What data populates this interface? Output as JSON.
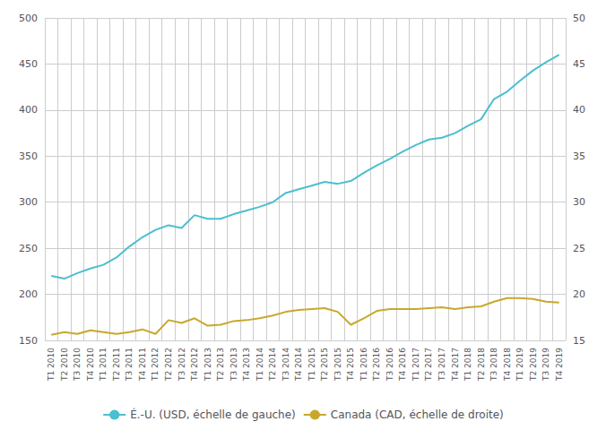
{
  "chart_data": {
    "type": "line",
    "categories": [
      "T1 2010",
      "T2 2010",
      "T3 2010",
      "T4 2010",
      "T1 2011",
      "T2 2011",
      "T3 2011",
      "T4 2011",
      "T1 2012",
      "T2 2012",
      "T3 2012",
      "T4 2012",
      "T1 2013",
      "T2 2013",
      "T3 2013",
      "T4 2013",
      "T1 2014",
      "T2 2014",
      "T3 2014",
      "T4 2014",
      "T1 2015",
      "T2 2015",
      "T3 2015",
      "T4 2015",
      "T1 2016",
      "T2 2016",
      "T3 2016",
      "T4 2016",
      "T1 2017",
      "T2 2017",
      "T3 2017",
      "T4 2017",
      "T1 2018",
      "T2 2018",
      "T3 2018",
      "T4 2018",
      "T1 2019",
      "T2 2019",
      "T3 2019",
      "T4 2019"
    ],
    "series": [
      {
        "name": "É.-U. (USD, échelle de gauche)",
        "color": "#4BBFCF",
        "axis": "y",
        "values": [
          220,
          217,
          223,
          228,
          232,
          240,
          252,
          262,
          270,
          275,
          272,
          286,
          282,
          282,
          287,
          291,
          295,
          300,
          310,
          314,
          318,
          322,
          320,
          323,
          332,
          340,
          347,
          355,
          362,
          368,
          370,
          375,
          383,
          390,
          412,
          420,
          432,
          443,
          452,
          460
        ]
      },
      {
        "name": "Canada (CAD, échelle de droite)",
        "color": "#C8A82C",
        "axis": "y2",
        "values": [
          15.6,
          15.9,
          15.7,
          16.1,
          15.9,
          15.7,
          15.9,
          16.2,
          15.7,
          17.2,
          16.9,
          17.4,
          16.6,
          16.7,
          17.1,
          17.2,
          17.4,
          17.7,
          18.1,
          18.3,
          18.4,
          18.5,
          18.1,
          16.7,
          17.4,
          18.2,
          18.4,
          18.4,
          18.4,
          18.5,
          18.6,
          18.4,
          18.6,
          18.7,
          19.2,
          19.6,
          19.6,
          19.5,
          19.2,
          19.1
        ]
      }
    ],
    "ylim": [
      150,
      500
    ],
    "yticks": [
      150,
      200,
      250,
      300,
      350,
      400,
      450,
      500
    ],
    "y2lim": [
      15,
      50
    ],
    "y2ticks": [
      15,
      20,
      25,
      30,
      35,
      40,
      45,
      50
    ],
    "grid": true,
    "legend": "bottom"
  }
}
